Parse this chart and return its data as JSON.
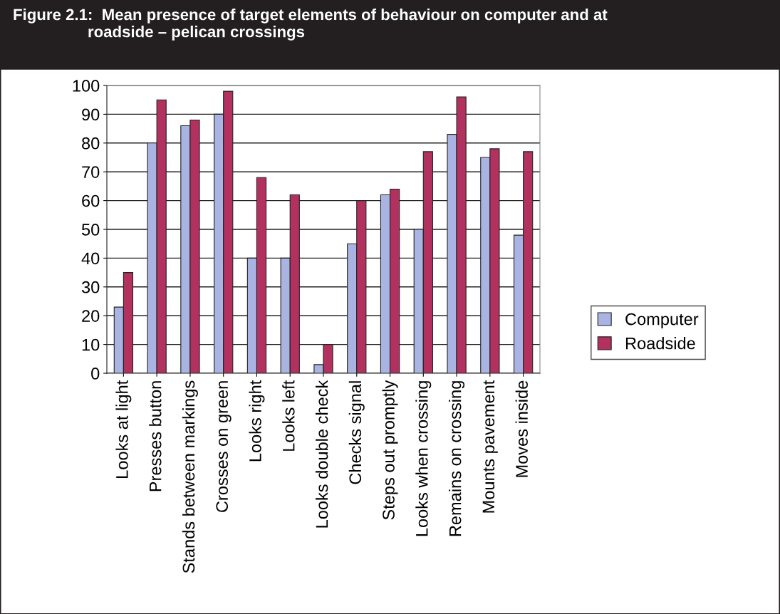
{
  "chart_data": {
    "type": "bar",
    "title": "Figure 2.1:  Mean presence of target elements of behaviour on computer and at\n                 roadside – pelican crossings",
    "categories": [
      "Looks at light",
      "Presses button",
      "Stands between markings",
      "Crosses on green",
      "Looks right",
      "Looks left",
      "Looks double check",
      "Checks signal",
      "Steps out promptly",
      "Looks when crossing",
      "Remains on crossing",
      "Mounts pavement",
      "Moves inside"
    ],
    "series": [
      {
        "name": "Computer",
        "color": "#a9b4e2",
        "values": [
          23,
          80,
          86,
          90,
          40,
          40,
          3,
          45,
          62,
          50,
          83,
          75,
          48
        ]
      },
      {
        "name": "Roadside",
        "color": "#b3315f",
        "values": [
          35,
          95,
          88,
          98,
          68,
          62,
          10,
          60,
          64,
          77,
          96,
          78,
          77
        ]
      }
    ],
    "ylim": [
      0,
      100
    ],
    "yticks": [
      0,
      10,
      20,
      30,
      40,
      50,
      60,
      70,
      80,
      90,
      100
    ],
    "grid": "y",
    "legend": "right"
  }
}
